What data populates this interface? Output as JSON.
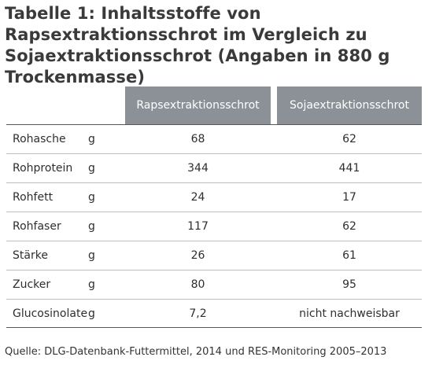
{
  "title": "Tabelle 1: Inhaltsstoffe von Rapsextraktionsschrot im Vergleich zu Sojaextraktionsschrot (Angaben in 880 g Trockenmasse)",
  "table": {
    "headers": [
      "Rapsextraktionsschrot",
      "Sojaextraktionsschrot"
    ],
    "rows": [
      {
        "name": "Rohasche",
        "unit": "g",
        "raps": "68",
        "soja": "62"
      },
      {
        "name": "Rohprotein",
        "unit": "g",
        "raps": "344",
        "soja": "441"
      },
      {
        "name": "Rohfett",
        "unit": "g",
        "raps": "24",
        "soja": "17"
      },
      {
        "name": "Rohfaser",
        "unit": "g",
        "raps": "117",
        "soja": "62"
      },
      {
        "name": "Stärke",
        "unit": "g",
        "raps": "26",
        "soja": "61"
      },
      {
        "name": "Zucker",
        "unit": "g",
        "raps": "80",
        "soja": "95"
      },
      {
        "name": "Glucosinolate",
        "unit": "g",
        "raps": "7,2",
        "soja": "nicht nachweisbar"
      }
    ]
  },
  "source": "Quelle: DLG-Datenbank-Futtermittel, 2014 und RES-Monitoring 2005–2013",
  "colors": {
    "header_bg": "#8c9097",
    "header_text": "#ffffff",
    "title_text": "#3a3a3a"
  }
}
